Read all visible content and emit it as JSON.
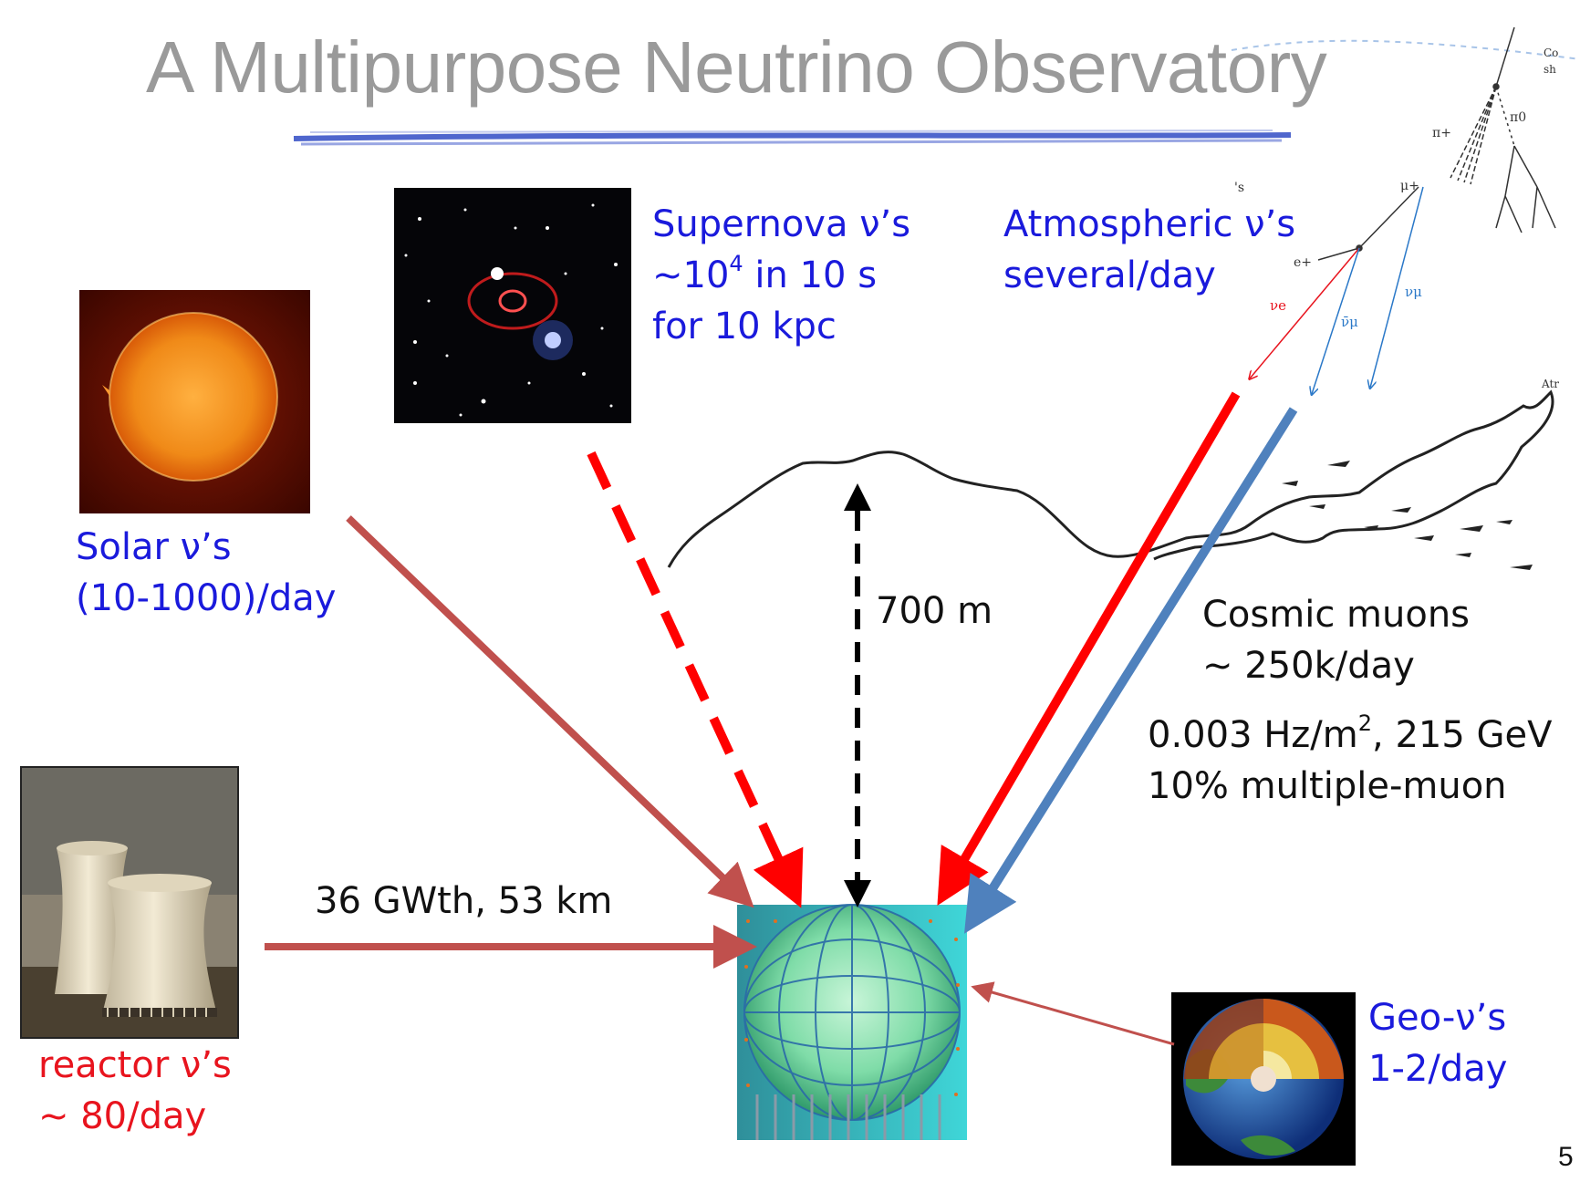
{
  "title": "A Multipurpose Neutrino Observatory",
  "page_number": "5",
  "supernova": {
    "line1": "Supernova ν’s",
    "line2_pre": "~10",
    "line2_sup": "4",
    "line2_post": " in 10 s",
    "line3": "for 10 kpc"
  },
  "atmospheric": {
    "line1": "Atmospheric ν’s",
    "line2": "several/day"
  },
  "solar": {
    "line1": "Solar ν’s",
    "line2": "(10-1000)/day"
  },
  "depth": {
    "label": "700 m"
  },
  "cosmic": {
    "line1": "Cosmic muons",
    "line2": "~ 250k/day",
    "rate_pre": "0.003 Hz/m",
    "rate_sup": "2",
    "rate_post": ", 215 GeV",
    "line4": "10% multiple-muon"
  },
  "reactor": {
    "distance": "36 GWth, 53 km",
    "line1": "reactor ν’s",
    "line2": "~ 80/day"
  },
  "geo": {
    "line1": "Geo-ν’s",
    "line2": "1-2/day"
  },
  "shower": {
    "pi_plus": "π+",
    "pi_zero": "π0",
    "mu_plus": "μ+",
    "e_plus": "e+",
    "nu_e": "νe",
    "nu_mu_bar": "ν̄μ",
    "nu_mu": "νμ",
    "corner_top": "Co",
    "corner_top2": "sh",
    "corner_right": "Atr",
    "corner_s": "'s"
  },
  "colors": {
    "blue_text": "#1a1adc",
    "red_text": "#e8141e",
    "solar_arrow": "#c0504d",
    "red_arrow": "#ff0000",
    "blue_arrow": "#4f81bd",
    "title": "#9a9a9a"
  }
}
